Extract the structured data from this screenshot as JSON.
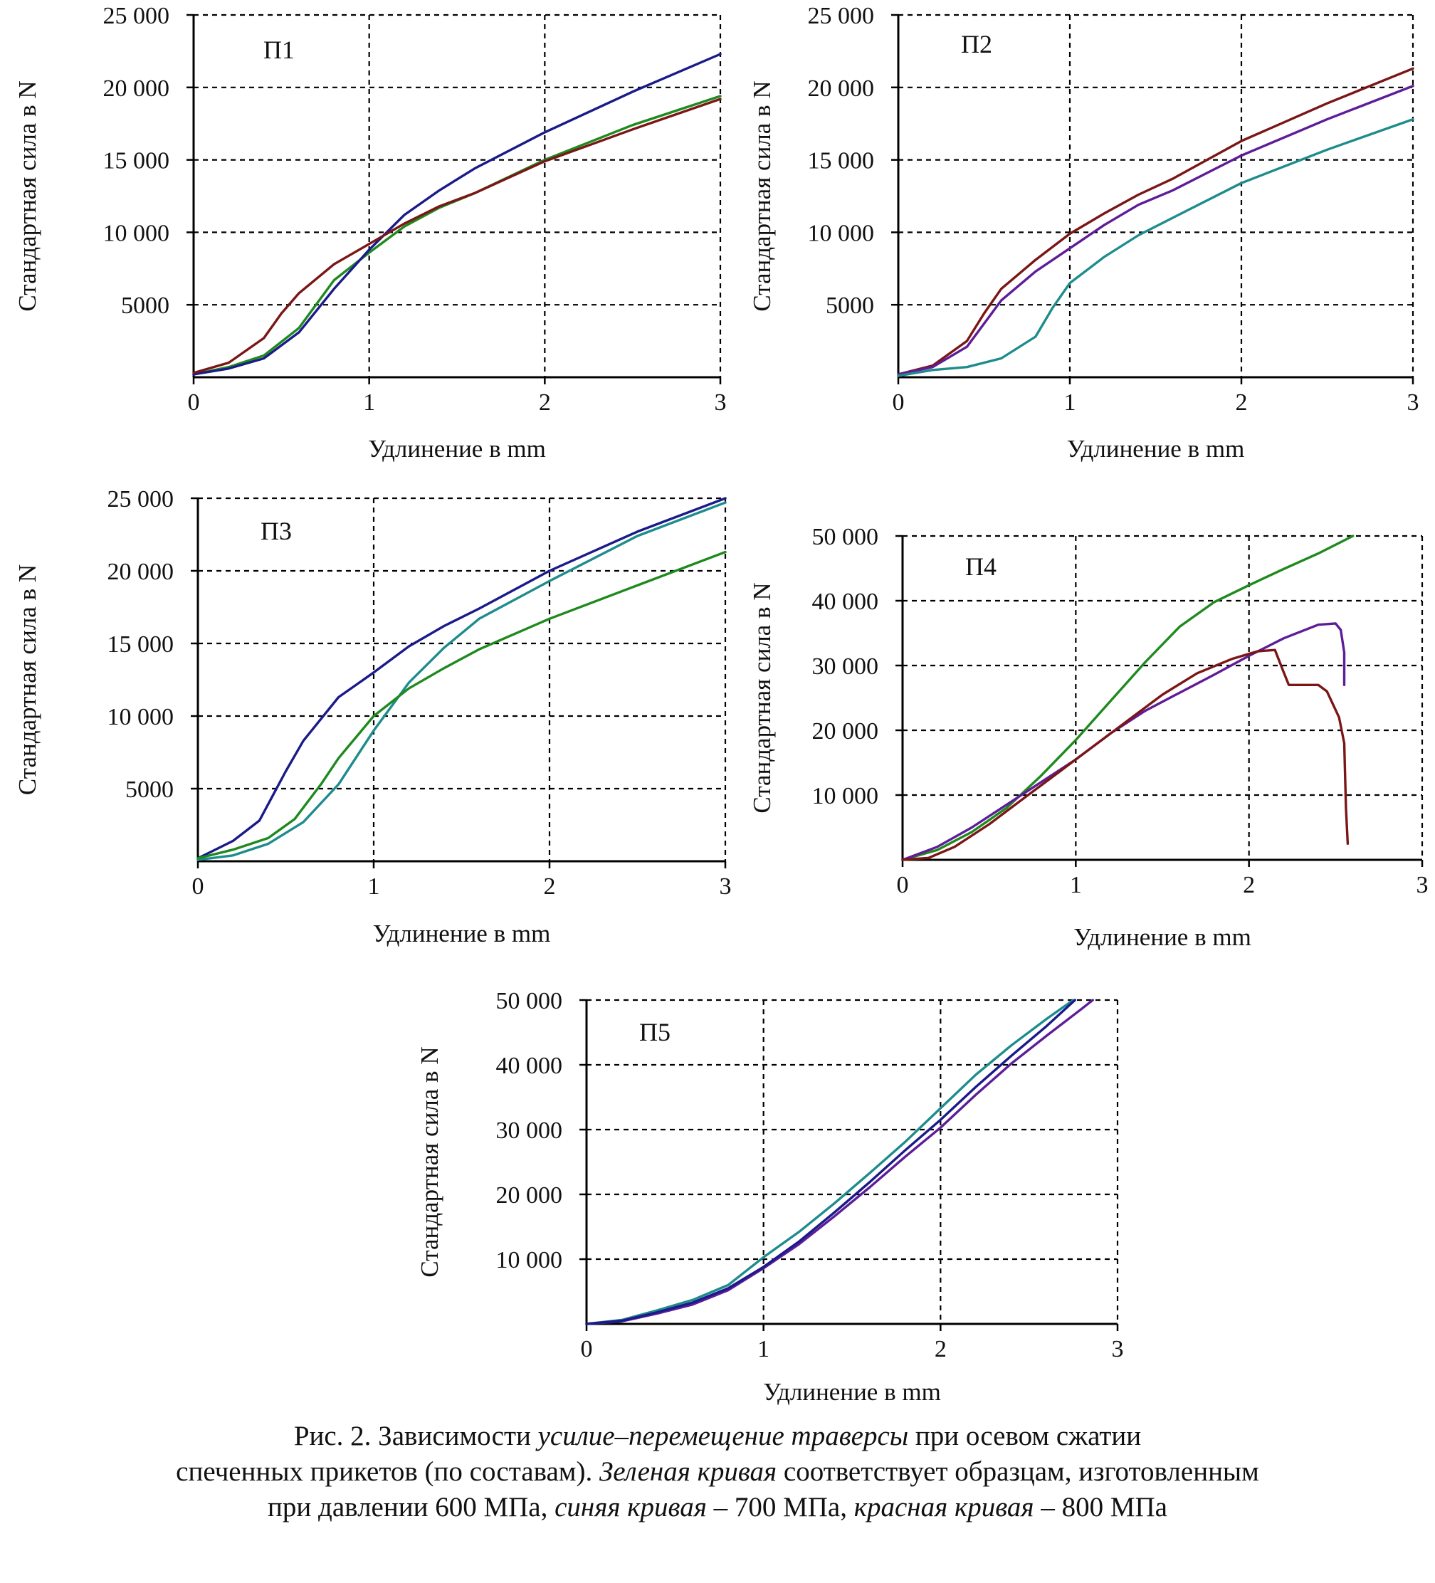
{
  "colors": {
    "green": "#1e8a1e",
    "blue": "#1a1a8a",
    "red": "#7a1616",
    "teal": "#1e8c8c",
    "purple": "#5e1d98",
    "grid": "#000000",
    "axis": "#000000"
  },
  "chart_data": [
    {
      "id": "p1",
      "type": "line",
      "panel_label": "П1",
      "xlabel": "Удлинение в mm",
      "ylabel": "Стандартная сила в N",
      "xlim": [
        0,
        3
      ],
      "ylim": [
        0,
        25000
      ],
      "xticks": [
        0,
        1,
        2,
        3
      ],
      "xtick_labels": [
        "0",
        "1",
        "2",
        "3"
      ],
      "yticks": [
        5000,
        10000,
        15000,
        20000,
        25000
      ],
      "ytick_labels": [
        "5000",
        "10 000",
        "15 000",
        "20 000",
        "25 000"
      ],
      "grid": true,
      "series": [
        {
          "color": "#1e8a1e",
          "x": [
            0,
            0.2,
            0.4,
            0.6,
            0.8,
            1.0,
            1.2,
            1.4,
            1.6,
            2.0,
            2.5,
            3.0
          ],
          "y": [
            200,
            700,
            1500,
            3400,
            6700,
            8600,
            10400,
            11700,
            12700,
            15000,
            17400,
            19400
          ]
        },
        {
          "color": "#1a1a8a",
          "x": [
            0,
            0.2,
            0.4,
            0.6,
            0.8,
            1.0,
            1.2,
            1.4,
            1.6,
            2.0,
            2.5,
            3.0
          ],
          "y": [
            200,
            600,
            1300,
            3100,
            6100,
            8800,
            11200,
            12900,
            14400,
            16900,
            19700,
            22300
          ]
        },
        {
          "color": "#7a1616",
          "x": [
            0,
            0.2,
            0.4,
            0.5,
            0.6,
            0.8,
            1.0,
            1.2,
            1.4,
            1.6,
            2.0,
            2.5,
            3.0
          ],
          "y": [
            300,
            1000,
            2700,
            4400,
            5800,
            7800,
            9200,
            10600,
            11800,
            12700,
            14900,
            17100,
            19200
          ]
        }
      ]
    },
    {
      "id": "p2",
      "type": "line",
      "panel_label": "П2",
      "xlabel": "Удлинение в mm",
      "ylabel": "Стандартная сила в N",
      "xlim": [
        0,
        3
      ],
      "ylim": [
        0,
        25000
      ],
      "xticks": [
        0,
        1,
        2,
        3
      ],
      "xtick_labels": [
        "0",
        "1",
        "2",
        "3"
      ],
      "yticks": [
        5000,
        10000,
        15000,
        20000,
        25000
      ],
      "ytick_labels": [
        "5000",
        "10 000",
        "15 000",
        "20 000",
        "25 000"
      ],
      "grid": true,
      "series": [
        {
          "color": "#7a1616",
          "x": [
            0,
            0.2,
            0.4,
            0.5,
            0.6,
            0.8,
            1.0,
            1.2,
            1.4,
            1.6,
            2.0,
            2.5,
            3.0
          ],
          "y": [
            200,
            800,
            2500,
            4400,
            6100,
            8100,
            9900,
            11300,
            12600,
            13700,
            16300,
            18900,
            21300
          ]
        },
        {
          "color": "#5e1d98",
          "x": [
            0,
            0.2,
            0.4,
            0.6,
            0.8,
            1.0,
            1.2,
            1.4,
            1.6,
            2.0,
            2.5,
            3.0
          ],
          "y": [
            200,
            700,
            2100,
            5300,
            7300,
            8900,
            10500,
            11900,
            12900,
            15300,
            17800,
            20100
          ]
        },
        {
          "color": "#1e8c8c",
          "x": [
            0,
            0.2,
            0.4,
            0.6,
            0.8,
            0.9,
            1.0,
            1.2,
            1.4,
            1.6,
            2.0,
            2.5,
            3.0
          ],
          "y": [
            100,
            500,
            700,
            1300,
            2800,
            4800,
            6500,
            8300,
            9800,
            11000,
            13400,
            15700,
            17800
          ]
        }
      ]
    },
    {
      "id": "p3",
      "type": "line",
      "panel_label": "П3",
      "xlabel": "Удлинение в mm",
      "ylabel": "Стандартная сила в N",
      "xlim": [
        0,
        3
      ],
      "ylim": [
        0,
        25000
      ],
      "xticks": [
        0,
        1,
        2,
        3
      ],
      "xtick_labels": [
        "0",
        "1",
        "2",
        "3"
      ],
      "yticks": [
        5000,
        10000,
        15000,
        20000,
        25000
      ],
      "ytick_labels": [
        "5000",
        "10 000",
        "15 000",
        "20 000",
        "25 000"
      ],
      "grid": true,
      "series": [
        {
          "color": "#1a1a8a",
          "x": [
            0,
            0.2,
            0.35,
            0.5,
            0.6,
            0.8,
            1.0,
            1.2,
            1.4,
            1.6,
            2.0,
            2.5,
            3.0
          ],
          "y": [
            200,
            1400,
            2800,
            6200,
            8300,
            11300,
            13000,
            14800,
            16200,
            17400,
            20000,
            22700,
            25000
          ]
        },
        {
          "color": "#1e8c8c",
          "x": [
            0,
            0.2,
            0.4,
            0.6,
            0.8,
            1.0,
            1.2,
            1.4,
            1.6,
            2.0,
            2.5,
            3.0
          ],
          "y": [
            100,
            400,
            1200,
            2700,
            5300,
            9000,
            12300,
            14700,
            16700,
            19300,
            22400,
            24700
          ]
        },
        {
          "color": "#1e8a1e",
          "x": [
            0,
            0.2,
            0.4,
            0.55,
            0.7,
            0.8,
            1.0,
            1.2,
            1.4,
            1.6,
            2.0,
            2.5,
            3.0
          ],
          "y": [
            200,
            800,
            1600,
            2900,
            5300,
            7100,
            10000,
            11900,
            13300,
            14600,
            16700,
            19000,
            21300
          ]
        }
      ]
    },
    {
      "id": "p4",
      "type": "line",
      "panel_label": "П4",
      "xlabel": "Удлинение в mm",
      "ylabel": "Стандартная сила в N",
      "xlim": [
        0,
        3
      ],
      "ylim": [
        0,
        50000
      ],
      "xticks": [
        0,
        1,
        2,
        3
      ],
      "xtick_labels": [
        "0",
        "1",
        "2",
        "3"
      ],
      "yticks": [
        10000,
        20000,
        30000,
        40000,
        50000
      ],
      "ytick_labels": [
        "10 000",
        "20 000",
        "30 000",
        "40 000",
        "50 000"
      ],
      "grid": true,
      "series": [
        {
          "color": "#1e8a1e",
          "x": [
            0,
            0.2,
            0.4,
            0.6,
            0.8,
            1.0,
            1.2,
            1.4,
            1.6,
            1.8,
            2.0,
            2.2,
            2.4,
            2.6
          ],
          "y": [
            0,
            1500,
            4300,
            8000,
            13000,
            18500,
            24500,
            30500,
            36000,
            39800,
            42400,
            44900,
            47300,
            50000
          ]
        },
        {
          "color": "#5e1d98",
          "x": [
            0,
            0.2,
            0.4,
            0.6,
            0.8,
            1.0,
            1.2,
            1.4,
            1.6,
            1.8,
            2.0,
            2.2,
            2.4,
            2.5,
            2.53,
            2.55,
            2.55
          ],
          "y": [
            0,
            2000,
            5000,
            8500,
            12000,
            15500,
            19500,
            23000,
            25800,
            28600,
            31500,
            34200,
            36300,
            36500,
            35500,
            32000,
            27000
          ]
        },
        {
          "color": "#7a1616",
          "x": [
            0,
            0.15,
            0.3,
            0.5,
            0.7,
            0.9,
            1.1,
            1.3,
            1.5,
            1.7,
            1.9,
            2.05,
            2.15,
            2.2,
            2.23,
            2.4,
            2.45,
            2.52,
            2.55,
            2.56,
            2.57
          ],
          "y": [
            0,
            300,
            2000,
            5500,
            9500,
            13500,
            17500,
            21500,
            25500,
            28800,
            31000,
            32200,
            32400,
            29000,
            27000,
            27000,
            26000,
            22000,
            18000,
            8000,
            2500
          ]
        }
      ]
    },
    {
      "id": "p5",
      "type": "line",
      "panel_label": "П5",
      "xlabel": "Удлинение в mm",
      "ylabel": "Стандартная сила в N",
      "xlim": [
        0,
        3
      ],
      "ylim": [
        0,
        50000
      ],
      "xticks": [
        0,
        1,
        2,
        3
      ],
      "xtick_labels": [
        "0",
        "1",
        "2",
        "3"
      ],
      "yticks": [
        10000,
        20000,
        30000,
        40000,
        50000
      ],
      "ytick_labels": [
        "10 000",
        "20 000",
        "30 000",
        "40 000",
        "50 000"
      ],
      "grid": true,
      "series": [
        {
          "color": "#1e8c8c",
          "x": [
            0,
            0.2,
            0.4,
            0.6,
            0.8,
            1.0,
            1.2,
            1.4,
            1.6,
            1.8,
            2.0,
            2.2,
            2.4,
            2.6,
            2.75
          ],
          "y": [
            0,
            600,
            2100,
            3700,
            6000,
            10300,
            14200,
            18600,
            23300,
            28100,
            33300,
            38500,
            43000,
            47100,
            50000
          ]
        },
        {
          "color": "#5e1d98",
          "x": [
            0,
            0.2,
            0.4,
            0.6,
            0.8,
            1.0,
            1.2,
            1.4,
            1.6,
            1.8,
            2.0,
            2.2,
            2.4,
            2.6,
            2.8,
            2.86
          ],
          "y": [
            0,
            400,
            1600,
            3000,
            5200,
            8600,
            12300,
            16600,
            21100,
            25800,
            30300,
            35400,
            40200,
            44500,
            48700,
            50000
          ]
        },
        {
          "color": "#1a1a8a",
          "x": [
            0,
            0.2,
            0.4,
            0.6,
            0.8,
            1.0,
            1.2,
            1.4,
            1.6,
            1.8,
            2.0,
            2.2,
            2.4,
            2.6,
            2.76
          ],
          "y": [
            0,
            500,
            1800,
            3300,
            5500,
            8800,
            12700,
            17200,
            21900,
            26800,
            31500,
            36600,
            41400,
            46000,
            50000
          ]
        }
      ]
    }
  ],
  "caption": {
    "line1_a": "Рис. 2. Зависимости ",
    "line1_i": "усилие–перемещение траверсы",
    "line1_b": " при осевом сжатии",
    "line2_a": "спеченных прикетов (по составам). ",
    "line2_i": "Зеленая кривая",
    "line2_b": " соответствует образцам, изготовленным",
    "line3_a": "при давлении 600 МПа, ",
    "line3_i1": "синяя кривая",
    "line3_b": " – 700 МПа, ",
    "line3_i2": "красная кривая",
    "line3_c": " – 800 МПа"
  }
}
